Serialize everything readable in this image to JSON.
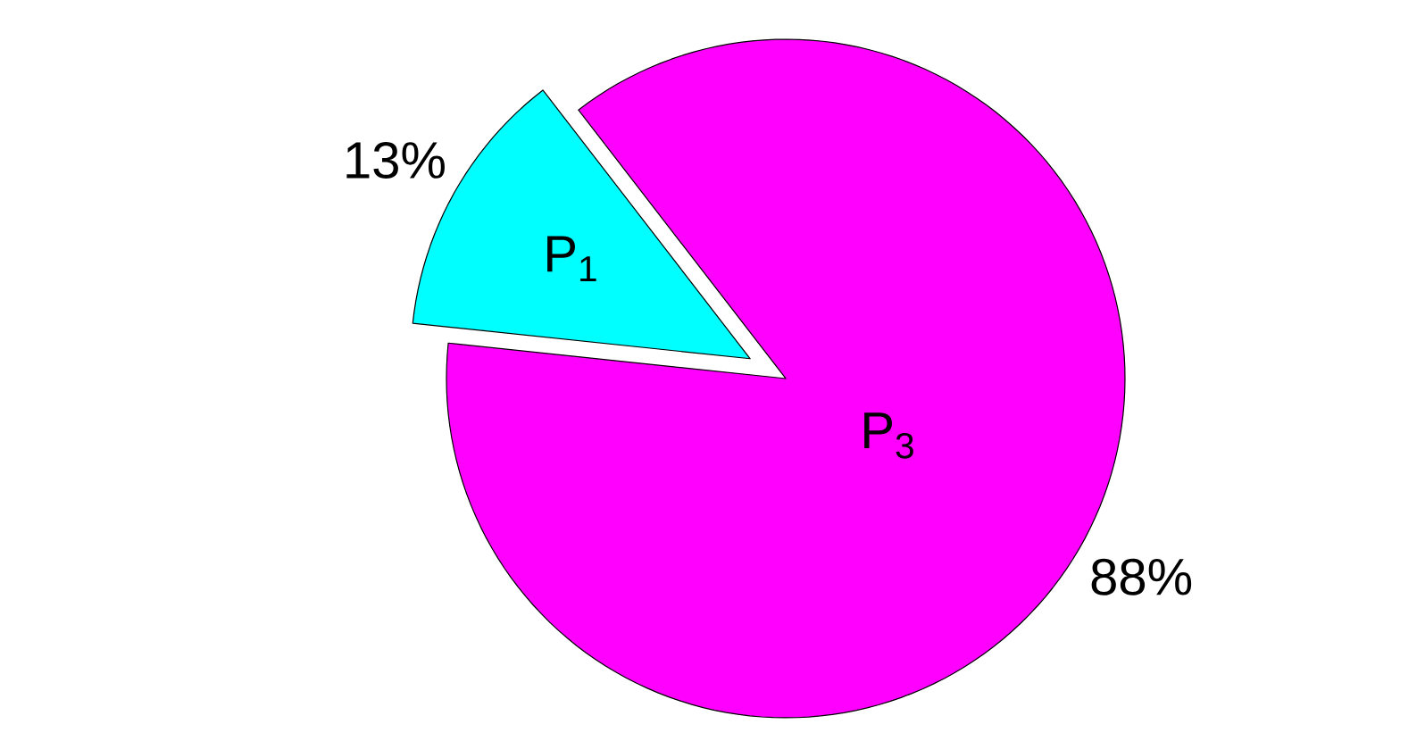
{
  "chart_data": {
    "type": "pie",
    "categories": [
      "P$_{1}$",
      "P$_{3}$"
    ],
    "values": [
      13,
      88
    ],
    "colors": [
      "#00ffff",
      "#ff00ff"
    ],
    "value_labels": [
      "13%",
      "88%"
    ]
  }
}
